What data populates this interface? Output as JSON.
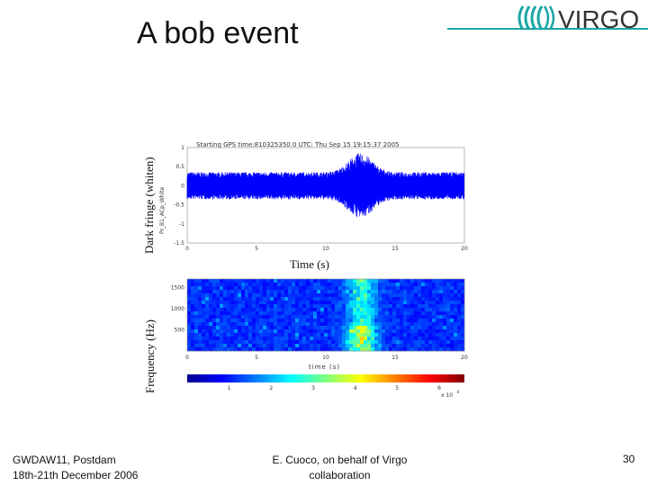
{
  "slide": {
    "title": "A bob event",
    "page_number": "30",
    "footer_left_line1": "GWDAW11,  Postdam",
    "footer_left_line2": "18th-21th December 2006",
    "footer_center_line1": "E. Cuoco, on behalf of Virgo",
    "footer_center_line2": "collaboration",
    "logo_text": "VIRGO"
  },
  "chart_data": [
    {
      "type": "line",
      "title": "Starting GPS time:810325350.0 UTC: Thu Sep 15 19:15:37 2005",
      "ylabel": "Dark fringe (whiten)",
      "xlabel": "Time (s)",
      "inner_ylabel": "Pr_B1_ACp_White",
      "xlim": [
        0,
        20
      ],
      "ylim": [
        -1.5,
        1
      ],
      "x_ticks": [
        "0",
        "5",
        "10",
        "15",
        "20"
      ],
      "y_ticks": [
        "1",
        "0.5",
        "0",
        "-0.5",
        "-1",
        "-1.5"
      ],
      "series": [
        {
          "color": "#0000ff"
        }
      ]
    },
    {
      "type": "heatmap",
      "ylabel": "Frequency (Hz)",
      "xlabel": "time (s)",
      "xlim": [
        0,
        20
      ],
      "ylim": [
        0,
        1700
      ],
      "x_ticks": [
        "0",
        "5",
        "10",
        "15",
        "20"
      ],
      "y_ticks": [
        "1500",
        "1000",
        "500"
      ],
      "colorbar_ticks": [
        "1",
        "2",
        "3",
        "4",
        "5",
        "6"
      ],
      "colorbar_scale": "x 10",
      "colorbar_exponent": "-4"
    }
  ]
}
